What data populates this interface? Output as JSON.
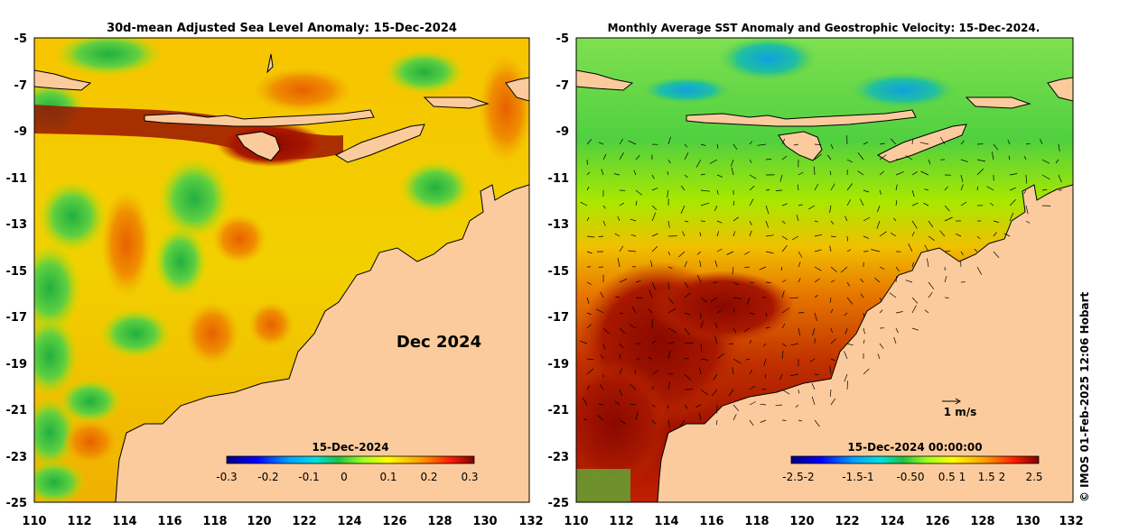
{
  "left_panel": {
    "title": "30d-mean Adjusted Sea Level Anomaly: 15-Dec-2024",
    "month_label": "Dec 2024",
    "colorbar": {
      "title": "15-Dec-2024",
      "ticks": [
        "-0.3",
        "-0.2",
        "-0.1",
        "0",
        "0.1",
        "0.2",
        "0.3"
      ],
      "values": [
        -0.3,
        -0.2,
        -0.1,
        0,
        0.1,
        0.2,
        0.3
      ],
      "range": [
        -0.3,
        0.3
      ]
    }
  },
  "right_panel": {
    "title": "Monthly Average SST Anomaly  and Geostrophic Velocity: 15-Dec-2024.",
    "scale_arrow_label": "1 m/s",
    "colorbar": {
      "title": "15-Dec-2024 00:00:00",
      "ticks": [
        "-2.5-2",
        "-1.5-1",
        "-0.50",
        "0.5 1",
        "1.5 2",
        "2.5"
      ],
      "range": [
        -2.5,
        2.5
      ]
    }
  },
  "axes": {
    "lat_ticks": [
      "-5",
      "-7",
      "-9",
      "-11",
      "-13",
      "-15",
      "-17",
      "-19",
      "-21",
      "-23",
      "-25"
    ],
    "lat_values": [
      -5,
      -7,
      -9,
      -11,
      -13,
      -15,
      -17,
      -19,
      -21,
      -23,
      -25
    ],
    "lon_ticks": [
      "110",
      "112",
      "114",
      "116",
      "118",
      "120",
      "122",
      "124",
      "126",
      "128",
      "130",
      "132"
    ],
    "lon_values": [
      110,
      112,
      114,
      116,
      118,
      120,
      122,
      124,
      126,
      128,
      130,
      132
    ]
  },
  "credit": "© IMOS 01-Feb-2025 12:06 Hobart",
  "colors": {
    "land": "#fccb9d",
    "background": "#ffffff",
    "colormap": [
      "#00007f",
      "#0000ff",
      "#0080ff",
      "#00ffff",
      "#00c040",
      "#80ff00",
      "#ffff00",
      "#ff9900",
      "#ff2000",
      "#7f0000"
    ]
  }
}
